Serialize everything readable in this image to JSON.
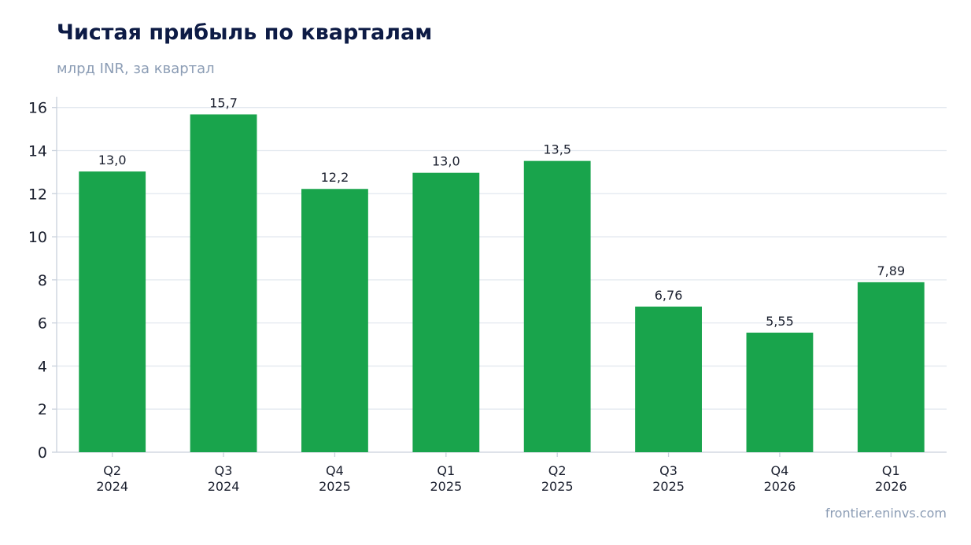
{
  "header": {
    "title": "Чистая прибыль по кварталам",
    "subtitle": "млрд INR, за квартал"
  },
  "footer": {
    "source": "frontier.eninvs.com"
  },
  "colors": {
    "bar": "#19a44c",
    "grid": "#e3e8ef",
    "axis": "#c9d1dc",
    "title": "#0d1b45",
    "muted": "#8c9db5"
  },
  "chart_data": {
    "type": "bar",
    "title": "Чистая прибыль по кварталам",
    "subtitle": "млрд INR, за квартал",
    "categories": [
      [
        "Q2",
        "2024"
      ],
      [
        "Q3",
        "2024"
      ],
      [
        "Q4",
        "2025"
      ],
      [
        "Q1",
        "2025"
      ],
      [
        "Q2",
        "2025"
      ],
      [
        "Q3",
        "2025"
      ],
      [
        "Q4",
        "2026"
      ],
      [
        "Q1",
        "2026"
      ]
    ],
    "values": [
      13.03,
      15.68,
      12.22,
      12.97,
      13.52,
      6.76,
      5.55,
      7.89
    ],
    "value_labels": [
      "13,0",
      "15,7",
      "12,2",
      "13,0",
      "13,5",
      "6,76",
      "5,55",
      "7,89"
    ],
    "yticks": [
      0,
      2,
      4,
      6,
      8,
      10,
      12,
      14,
      16
    ],
    "ylim": [
      0,
      16.5
    ],
    "grid": true,
    "xlabel": "",
    "ylabel": ""
  }
}
